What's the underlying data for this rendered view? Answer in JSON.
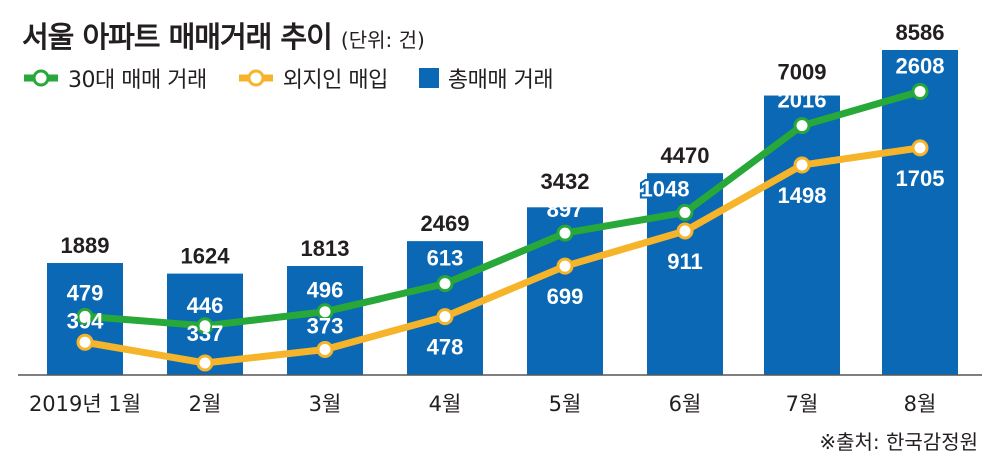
{
  "header": {
    "title": "서울 아파트 매매거래 추이",
    "unit": "(단위: 건)"
  },
  "source": "※출처: 한국감정원",
  "colors": {
    "bar": "#0a68b4",
    "green": "#27a838",
    "yellow": "#f6b42a",
    "text": "#231f20"
  },
  "chart_data": {
    "type": "bar",
    "title": "서울 아파트 매매거래 추이",
    "unit": "(단위: 건)",
    "categories": [
      "2019년 1월",
      "2월",
      "3월",
      "4월",
      "5월",
      "6월",
      "7월",
      "8월"
    ],
    "series": [
      {
        "name": "총매매 거래",
        "kind": "bar",
        "values": [
          1889,
          1624,
          1813,
          2469,
          3432,
          4470,
          7009,
          8586
        ]
      },
      {
        "name": "30대 매매 거래",
        "kind": "line",
        "values": [
          479,
          446,
          496,
          613,
          897,
          1048,
          2016,
          2608
        ]
      },
      {
        "name": "외지인 매입",
        "kind": "line",
        "values": [
          394,
          337,
          373,
          478,
          699,
          911,
          1498,
          1705
        ]
      }
    ],
    "legend": [
      "30대 매매 거래",
      "외지인 매입",
      "총매매 거래"
    ],
    "legend_position": "top-left",
    "grid": false,
    "xlabel": "",
    "ylabel": ""
  }
}
